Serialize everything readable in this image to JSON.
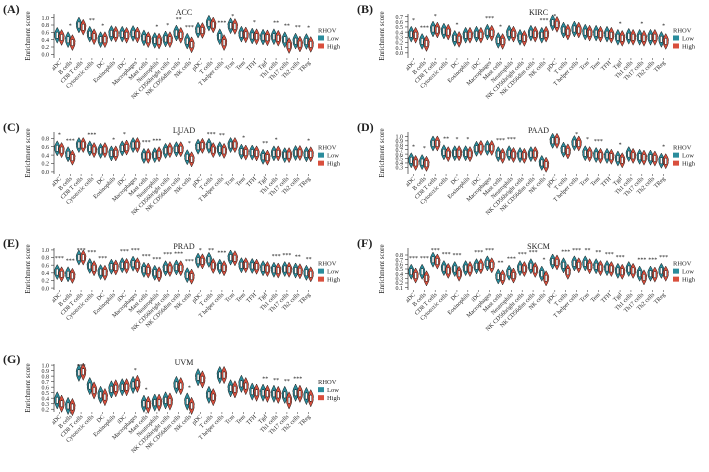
{
  "figure": {
    "ylabel": "Enrichment score",
    "legend_title": "RHOV",
    "legend_labels": [
      "Low",
      "High"
    ],
    "colors": {
      "low": "#2a8c9c",
      "high": "#d94f3d",
      "text": "#222222",
      "axis": "#333333"
    },
    "cells": [
      "aDC",
      "B cells",
      "CD8 T cells",
      "Cytotoxic cells",
      "DC",
      "Eosinophils",
      "iDC",
      "Macrophages",
      "Mast cells",
      "Neutrophils",
      "NK CD56bright cells",
      "NK CD56dim cells",
      "NK cells",
      "pDC",
      "T cells",
      "T helper cells",
      "Tcm",
      "Tem",
      "TFH",
      "Tgd",
      "Th1 cells",
      "Th17 cells",
      "Th2 cells",
      "TReg"
    ]
  },
  "panels": [
    {
      "letter": "(A)",
      "title": "ACC"
    },
    {
      "letter": "(B)",
      "title": "KIRC"
    },
    {
      "letter": "(C)",
      "title": "LUAD"
    },
    {
      "letter": "(D)",
      "title": "PAAD"
    },
    {
      "letter": "(E)",
      "title": "PRAD"
    },
    {
      "letter": "(F)",
      "title": "SKCM"
    },
    {
      "letter": "(G)",
      "title": "UVM"
    }
  ],
  "chart_data": [
    {
      "type": "violin",
      "title": "ACC",
      "ylabel": "Enrichment score",
      "ylim": [
        -0.1,
        1.1
      ],
      "yticks": [
        0.0,
        0.2,
        0.4,
        0.6,
        0.8,
        1.0
      ],
      "series": [
        {
          "name": "Low",
          "values": [
            0.52,
            0.4,
            0.8,
            0.55,
            0.4,
            0.57,
            0.55,
            0.57,
            0.45,
            0.38,
            0.42,
            0.58,
            0.36,
            0.66,
            0.85,
            0.48,
            0.78,
            0.55,
            0.5,
            0.47,
            0.48,
            0.4,
            0.36,
            0.35
          ]
        },
        {
          "name": "High",
          "values": [
            0.46,
            0.32,
            0.74,
            0.48,
            0.4,
            0.55,
            0.52,
            0.53,
            0.4,
            0.36,
            0.4,
            0.52,
            0.26,
            0.65,
            0.8,
            0.32,
            0.76,
            0.53,
            0.48,
            0.45,
            0.44,
            0.24,
            0.28,
            0.27
          ]
        }
      ],
      "significance": [
        "",
        "*",
        "",
        "**",
        "*",
        "",
        "",
        "",
        "",
        "*",
        "*",
        "**",
        "***",
        "",
        "",
        "***",
        "*",
        "",
        "*",
        "",
        "**",
        "**",
        "**",
        "*"
      ]
    },
    {
      "type": "violin",
      "title": "KIRC",
      "ylabel": "Enrichment score",
      "ylim": [
        -0.1,
        0.75
      ],
      "yticks": [
        0.0,
        0.1,
        0.2,
        0.3,
        0.4,
        0.5,
        0.6,
        0.7
      ],
      "series": [
        {
          "name": "Low",
          "values": [
            0.36,
            0.22,
            0.46,
            0.42,
            0.28,
            0.34,
            0.36,
            0.4,
            0.24,
            0.38,
            0.3,
            0.38,
            0.34,
            0.58,
            0.44,
            0.46,
            0.4,
            0.38,
            0.36,
            0.3,
            0.32,
            0.3,
            0.3,
            0.26
          ]
        },
        {
          "name": "High",
          "values": [
            0.34,
            0.18,
            0.44,
            0.4,
            0.26,
            0.34,
            0.34,
            0.38,
            0.22,
            0.36,
            0.28,
            0.36,
            0.36,
            0.55,
            0.4,
            0.44,
            0.38,
            0.36,
            0.34,
            0.28,
            0.3,
            0.28,
            0.3,
            0.22
          ]
        }
      ],
      "significance": [
        "*",
        "***",
        "*",
        "",
        "*",
        "",
        "",
        "***",
        "*",
        "",
        "",
        "",
        "***",
        "*",
        "",
        "",
        "",
        "",
        "",
        "*",
        "",
        "*",
        "",
        "*"
      ]
    },
    {
      "type": "violin",
      "title": "LUAD",
      "ylabel": "Enrichment score",
      "ylim": [
        -0.05,
        0.95
      ],
      "yticks": [
        0.0,
        0.2,
        0.4,
        0.6,
        0.8
      ],
      "series": [
        {
          "name": "Low",
          "values": [
            0.56,
            0.42,
            0.64,
            0.56,
            0.5,
            0.44,
            0.56,
            0.64,
            0.38,
            0.4,
            0.5,
            0.54,
            0.35,
            0.6,
            0.62,
            0.54,
            0.64,
            0.48,
            0.46,
            0.36,
            0.44,
            0.4,
            0.45,
            0.42
          ]
        },
        {
          "name": "High",
          "values": [
            0.52,
            0.34,
            0.64,
            0.52,
            0.52,
            0.44,
            0.58,
            0.64,
            0.38,
            0.42,
            0.52,
            0.54,
            0.3,
            0.62,
            0.52,
            0.5,
            0.64,
            0.46,
            0.44,
            0.34,
            0.44,
            0.4,
            0.45,
            0.42
          ]
        }
      ],
      "significance": [
        "*",
        "***",
        "",
        "***",
        "",
        "*",
        "*",
        "",
        "***",
        "***",
        "",
        "*",
        "*",
        "",
        "***",
        "**",
        "",
        "*",
        "",
        "**",
        "*",
        "",
        "",
        "*"
      ]
    },
    {
      "type": "violin",
      "title": "PAAD",
      "ylabel": "Enrichment score",
      "ylim": [
        0.15,
        1.1
      ],
      "yticks": [
        0.3,
        0.4,
        0.5,
        0.6,
        0.7,
        0.8,
        0.9,
        1.0
      ],
      "series": [
        {
          "name": "Low",
          "values": [
            0.46,
            0.42,
            0.84,
            0.64,
            0.62,
            0.62,
            0.72,
            0.74,
            0.6,
            0.62,
            0.58,
            0.6,
            0.4,
            0.9,
            0.7,
            0.85,
            0.62,
            0.58,
            0.56,
            0.5,
            0.6,
            0.54,
            0.52,
            0.45
          ]
        },
        {
          "name": "High",
          "values": [
            0.4,
            0.38,
            0.84,
            0.6,
            0.62,
            0.6,
            0.74,
            0.74,
            0.56,
            0.58,
            0.56,
            0.6,
            0.36,
            0.9,
            0.66,
            0.84,
            0.6,
            0.56,
            0.54,
            0.46,
            0.56,
            0.52,
            0.5,
            0.44
          ]
        }
      ],
      "significance": [
        "*",
        "*",
        "",
        "**",
        "*",
        "*",
        "",
        "",
        "***",
        "***",
        "",
        "",
        "",
        "",
        "",
        "*",
        "*",
        "***",
        "",
        "*",
        "",
        "",
        "",
        "*"
      ]
    },
    {
      "type": "violin",
      "title": "PRAD",
      "ylabel": "Enrichment score",
      "ylim": [
        -0.05,
        1.05
      ],
      "yticks": [
        0.0,
        0.2,
        0.4,
        0.6,
        0.8,
        1.0
      ],
      "series": [
        {
          "name": "Low",
          "values": [
            0.42,
            0.36,
            0.8,
            0.58,
            0.42,
            0.56,
            0.6,
            0.64,
            0.48,
            0.4,
            0.52,
            0.54,
            0.34,
            0.72,
            0.74,
            0.56,
            0.8,
            0.6,
            0.58,
            0.52,
            0.48,
            0.5,
            0.46,
            0.4
          ]
        },
        {
          "name": "High",
          "values": [
            0.36,
            0.32,
            0.8,
            0.52,
            0.4,
            0.54,
            0.58,
            0.6,
            0.46,
            0.36,
            0.5,
            0.52,
            0.3,
            0.7,
            0.58,
            0.52,
            0.78,
            0.6,
            0.56,
            0.5,
            0.46,
            0.48,
            0.44,
            0.36
          ]
        }
      ],
      "significance": [
        "***",
        "***",
        "***",
        "***",
        "***",
        "",
        "***",
        "***",
        "***",
        "***",
        "***",
        "***",
        "***",
        "*",
        "**",
        "***",
        "",
        "",
        "",
        "",
        "***",
        "***",
        "**",
        "**"
      ]
    },
    {
      "type": "violin",
      "title": "SKCM",
      "ylabel": "Enrichment score",
      "ylim": [
        0.05,
        0.95
      ],
      "yticks": [
        0.1,
        0.2,
        0.3,
        0.4,
        0.5,
        0.6,
        0.7,
        0.8
      ],
      "series": [
        {
          "name": "Low",
          "values": [
            0.44,
            0.44,
            0.7,
            0.52,
            0.5,
            0.52,
            0.56,
            0.62,
            0.34,
            0.42,
            0.52,
            0.56,
            0.4,
            0.66,
            0.58,
            0.62,
            0.62,
            0.56,
            0.52,
            0.46,
            0.5,
            0.4,
            0.4,
            0.46
          ]
        },
        {
          "name": "High",
          "values": [
            0.36,
            0.3,
            0.66,
            0.46,
            0.4,
            0.5,
            0.56,
            0.58,
            0.32,
            0.36,
            0.5,
            0.48,
            0.3,
            0.64,
            0.44,
            0.58,
            0.56,
            0.52,
            0.5,
            0.44,
            0.46,
            0.32,
            0.38,
            0.4
          ]
        }
      ],
      "significance": [
        "***",
        "***",
        "***",
        "***",
        "***",
        "",
        "***",
        "***",
        "**",
        "***",
        "***",
        "***",
        "*",
        "",
        "***",
        "***",
        "**",
        "**",
        "***",
        "***",
        "",
        "***",
        "***",
        "***"
      ]
    },
    {
      "type": "violin",
      "title": "UVM",
      "ylabel": "Enrichment score",
      "ylim": [
        0.15,
        1.02
      ],
      "yticks": [
        0.2,
        0.3,
        0.4,
        0.5,
        0.6,
        0.7,
        0.8,
        0.9,
        1.0
      ],
      "series": [
        {
          "name": "Low",
          "values": [
            0.36,
            0.26,
            0.86,
            0.62,
            0.46,
            0.56,
            0.6,
            0.64,
            0.3,
            0.32,
            0.36,
            0.64,
            0.34,
            0.78,
            0.46,
            0.82,
            0.58,
            0.66,
            0.52,
            0.5,
            0.48,
            0.46,
            0.5,
            0.44
          ]
        },
        {
          "name": "High",
          "values": [
            0.3,
            0.24,
            0.88,
            0.54,
            0.42,
            0.58,
            0.6,
            0.66,
            0.28,
            0.32,
            0.34,
            0.62,
            0.26,
            0.74,
            0.42,
            0.82,
            0.56,
            0.62,
            0.5,
            0.48,
            0.46,
            0.36,
            0.48,
            0.4
          ]
        }
      ],
      "significance": [
        "",
        "",
        "***",
        "",
        "",
        "",
        "",
        "*",
        "*",
        "",
        "",
        "",
        "*",
        "",
        "",
        "",
        "",
        "",
        "",
        "**",
        "**",
        "**",
        "***",
        ""
      ]
    }
  ]
}
